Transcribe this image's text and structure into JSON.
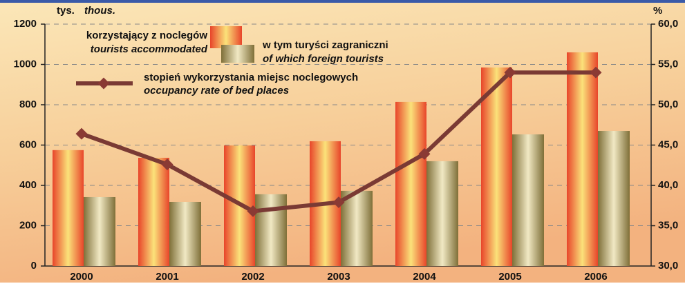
{
  "chart_data": {
    "type": "bar",
    "ylabel": "tys.",
    "ylabel_en": "thous.",
    "y2label": "%",
    "categories": [
      "2000",
      "2001",
      "2002",
      "2003",
      "2004",
      "2005",
      "2006"
    ],
    "series": [
      {
        "name": "korzystający z noclegów",
        "name_en": "tourists accommodated",
        "color": "#e8452a",
        "values": [
          575,
          537,
          598,
          619,
          814,
          985,
          1060
        ]
      },
      {
        "name": "w tym turyści zagraniczni",
        "name_en": "of which foreign tourists",
        "color": "#8a7a40",
        "values": [
          342,
          318,
          356,
          373,
          520,
          653,
          670
        ]
      },
      {
        "name": "stopień wykorzystania miejsc noclegowych",
        "name_en": "occupancy rate of bed places",
        "color": "#7a3a34",
        "type": "line",
        "axis": "y2",
        "values": [
          46.4,
          42.6,
          36.8,
          37.9,
          43.9,
          54.0,
          54.0
        ]
      }
    ],
    "ylim": [
      0,
      1200
    ],
    "yticks": [
      0,
      200,
      400,
      600,
      800,
      1000,
      1200
    ],
    "y2lim": [
      30,
      60
    ],
    "y2ticks": [
      {
        "value": 30,
        "label": "30,0"
      },
      {
        "value": 35,
        "label": "35,0"
      },
      {
        "value": 40,
        "label": "40,0"
      },
      {
        "value": 45,
        "label": "45,0"
      },
      {
        "value": 50,
        "label": "50,0"
      },
      {
        "value": 55,
        "label": "55,0"
      },
      {
        "value": 60,
        "label": "60,0"
      }
    ],
    "grid": true
  }
}
